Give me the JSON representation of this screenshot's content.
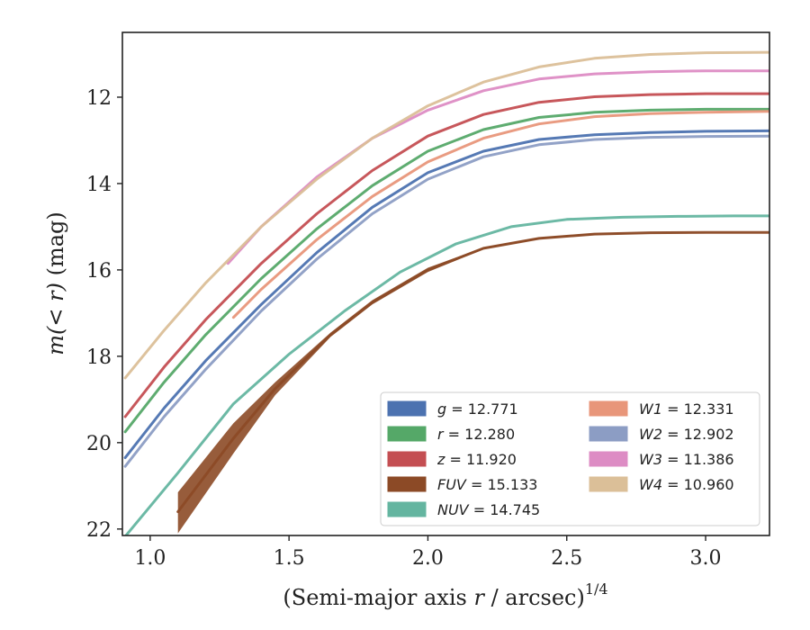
{
  "chart_data": {
    "type": "line",
    "xlabel_main": "(Semi-major axis ",
    "xlabel_var": "r",
    "xlabel_tail": " / arcsec)",
    "xlabel_power": "1/4",
    "ylabel_main": "m(< r)",
    "ylabel_unit": " (mag)",
    "xlim": [
      0.9,
      3.23
    ],
    "ylim": [
      22.15,
      10.5
    ],
    "y_inverted": true,
    "x_ticks": [
      "1.0",
      "1.5",
      "2.0",
      "2.5",
      "3.0"
    ],
    "x_tick_values": [
      1.0,
      1.5,
      2.0,
      2.5,
      3.0
    ],
    "y_ticks": [
      "12",
      "14",
      "16",
      "18",
      "20",
      "22"
    ],
    "y_tick_values": [
      12,
      14,
      16,
      18,
      20,
      22
    ],
    "legend_position": "lower-right",
    "series": [
      {
        "name": "g",
        "value": "12.771",
        "color": "#4c72b0",
        "x": [
          0.91,
          1.05,
          1.2,
          1.4,
          1.6,
          1.8,
          2.0,
          2.2,
          2.4,
          2.6,
          2.8,
          3.0,
          3.23
        ],
        "y": [
          20.35,
          19.2,
          18.1,
          16.8,
          15.6,
          14.55,
          13.75,
          13.25,
          12.98,
          12.87,
          12.82,
          12.79,
          12.78
        ]
      },
      {
        "name": "r",
        "value": "12.280",
        "color": "#55a868",
        "x": [
          0.91,
          1.05,
          1.2,
          1.4,
          1.6,
          1.8,
          2.0,
          2.2,
          2.4,
          2.6,
          2.8,
          3.0,
          3.23
        ],
        "y": [
          19.75,
          18.6,
          17.5,
          16.2,
          15.05,
          14.05,
          13.25,
          12.75,
          12.47,
          12.35,
          12.3,
          12.28,
          12.28
        ]
      },
      {
        "name": "z",
        "value": "11.920",
        "color": "#c44e52",
        "x": [
          0.91,
          1.05,
          1.2,
          1.4,
          1.6,
          1.8,
          2.0,
          2.2,
          2.4,
          2.6,
          2.8,
          3.0,
          3.23
        ],
        "y": [
          19.4,
          18.25,
          17.15,
          15.85,
          14.7,
          13.7,
          12.9,
          12.4,
          12.12,
          11.99,
          11.94,
          11.92,
          11.92
        ]
      },
      {
        "name": "FUV",
        "value": "15.133",
        "color": "#8c4a26",
        "x": [
          1.1,
          1.3,
          1.45,
          1.65,
          1.8,
          2.0,
          2.2,
          2.4,
          2.6,
          2.8,
          3.0,
          3.23
        ],
        "y": [
          21.6,
          19.9,
          18.75,
          17.5,
          16.75,
          16.0,
          15.5,
          15.27,
          15.17,
          15.14,
          15.13,
          15.13
        ],
        "band_upper": [
          21.15,
          19.55,
          18.6,
          17.45,
          16.7,
          15.95,
          15.48,
          15.25,
          15.15,
          15.14,
          15.13,
          15.13
        ],
        "band_lower": [
          22.1,
          20.25,
          18.9,
          17.55,
          16.8,
          16.05,
          15.52,
          15.29,
          15.19,
          15.15,
          15.14,
          15.13
        ]
      },
      {
        "name": "NUV",
        "value": "14.745",
        "color": "#64b5a0",
        "x": [
          0.9,
          1.1,
          1.3,
          1.5,
          1.7,
          1.9,
          2.1,
          2.3,
          2.5,
          2.7,
          2.9,
          3.1,
          3.23
        ],
        "y": [
          22.25,
          20.7,
          19.1,
          17.95,
          16.95,
          16.05,
          15.4,
          15.0,
          14.83,
          14.78,
          14.76,
          14.75,
          14.75
        ]
      },
      {
        "name": "W1",
        "value": "12.331",
        "color": "#e8967a",
        "x": [
          1.3,
          1.4,
          1.6,
          1.8,
          2.0,
          2.2,
          2.4,
          2.6,
          2.8,
          3.0,
          3.23
        ],
        "y": [
          17.1,
          16.45,
          15.3,
          14.3,
          13.5,
          12.95,
          12.62,
          12.45,
          12.38,
          12.35,
          12.33
        ]
      },
      {
        "name": "W2",
        "value": "12.902",
        "color": "#8c9dc4",
        "x": [
          0.91,
          1.05,
          1.2,
          1.4,
          1.6,
          1.8,
          2.0,
          2.2,
          2.4,
          2.6,
          2.8,
          3.0,
          3.23
        ],
        "y": [
          20.55,
          19.4,
          18.3,
          16.95,
          15.75,
          14.7,
          13.9,
          13.38,
          13.1,
          12.98,
          12.93,
          12.91,
          12.9
        ]
      },
      {
        "name": "W3",
        "value": "11.386",
        "color": "#dd8cc4",
        "x": [
          1.28,
          1.4,
          1.6,
          1.8,
          2.0,
          2.2,
          2.4,
          2.6,
          2.8,
          3.0,
          3.23
        ],
        "y": [
          15.85,
          15.0,
          13.85,
          12.95,
          12.3,
          11.85,
          11.58,
          11.46,
          11.41,
          11.39,
          11.39
        ]
      },
      {
        "name": "W4",
        "value": "10.960",
        "color": "#dbbf98",
        "x": [
          0.91,
          1.05,
          1.2,
          1.4,
          1.6,
          1.8,
          2.0,
          2.2,
          2.4,
          2.6,
          2.8,
          3.0,
          3.23
        ],
        "y": [
          18.5,
          17.4,
          16.3,
          15.0,
          13.9,
          12.95,
          12.2,
          11.65,
          11.3,
          11.1,
          11.01,
          10.97,
          10.96
        ]
      }
    ]
  }
}
